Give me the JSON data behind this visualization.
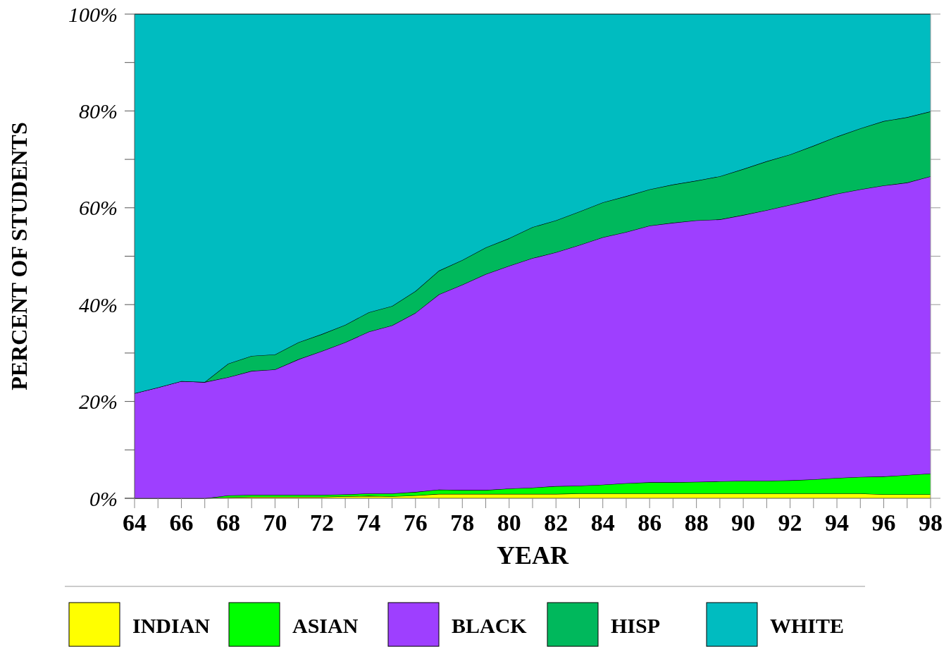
{
  "chart_data": {
    "type": "area",
    "stacked": true,
    "xlabel": "YEAR",
    "ylabel": "PERCENT OF STUDENTS",
    "x": [
      64,
      65,
      66,
      67,
      68,
      69,
      70,
      71,
      72,
      73,
      74,
      75,
      76,
      77,
      78,
      79,
      80,
      81,
      82,
      83,
      84,
      85,
      86,
      87,
      88,
      89,
      90,
      91,
      92,
      93,
      94,
      95,
      96,
      97,
      98
    ],
    "series": [
      {
        "name": "INDIAN",
        "color": "#ffff00",
        "values": [
          0,
          0,
          0,
          0,
          0.2,
          0.3,
          0.3,
          0.3,
          0.3,
          0.4,
          0.5,
          0.4,
          0.6,
          0.9,
          0.9,
          0.9,
          0.9,
          0.9,
          0.9,
          1.0,
          1.0,
          1.0,
          1.0,
          1.0,
          1.0,
          1.0,
          1.0,
          1.0,
          1.0,
          1.0,
          1.0,
          1.0,
          0.8,
          0.8,
          0.8
        ]
      },
      {
        "name": "ASIAN",
        "color": "#00ff00",
        "values": [
          0,
          0,
          0,
          0,
          0.4,
          0.4,
          0.4,
          0.4,
          0.4,
          0.4,
          0.5,
          0.6,
          0.7,
          0.9,
          0.8,
          0.8,
          1.1,
          1.3,
          1.6,
          1.6,
          1.8,
          2.1,
          2.3,
          2.3,
          2.4,
          2.5,
          2.6,
          2.6,
          2.7,
          2.9,
          3.2,
          3.4,
          3.7,
          4.0,
          4.3
        ]
      },
      {
        "name": "BLACK",
        "color": "#9e3fff",
        "values": [
          21.7,
          22.9,
          24.2,
          24.0,
          24.4,
          25.6,
          25.9,
          28.0,
          29.7,
          31.4,
          33.4,
          34.7,
          37.0,
          40.3,
          42.4,
          44.6,
          46.0,
          47.4,
          48.3,
          49.7,
          51.1,
          51.9,
          53.0,
          53.6,
          54.0,
          54.1,
          54.9,
          55.9,
          56.9,
          57.8,
          58.7,
          59.4,
          60.1,
          60.4,
          61.4
        ]
      },
      {
        "name": "HISP",
        "color": "#00b85c",
        "values": [
          0,
          0,
          0,
          0,
          2.8,
          3.1,
          3.1,
          3.5,
          3.5,
          3.6,
          4.0,
          4.0,
          4.5,
          4.9,
          5.1,
          5.5,
          5.7,
          6.4,
          6.6,
          6.9,
          7.2,
          7.4,
          7.5,
          7.9,
          8.2,
          8.9,
          9.5,
          10.1,
          10.4,
          11.1,
          11.8,
          12.6,
          13.3,
          13.5,
          13.4
        ]
      },
      {
        "name": "WHITE",
        "color": "#00bcc0",
        "values": [
          78.3,
          77.1,
          75.8,
          76.0,
          72.2,
          70.6,
          70.3,
          67.8,
          66.1,
          64.2,
          61.6,
          60.3,
          57.2,
          53.0,
          50.8,
          48.2,
          46.3,
          44.0,
          42.6,
          40.8,
          38.9,
          37.6,
          36.2,
          35.2,
          34.4,
          33.5,
          32.0,
          30.4,
          29.0,
          27.2,
          25.3,
          23.6,
          22.1,
          21.3,
          20.1
        ]
      }
    ],
    "xlim": [
      64,
      98
    ],
    "xticks": [
      64,
      {
        "value": 65,
        "label": null
      },
      66,
      {
        "value": 67,
        "label": null
      },
      68,
      {
        "value": 69,
        "label": null
      },
      70,
      {
        "value": 71,
        "label": null
      },
      72,
      {
        "value": 73,
        "label": null
      },
      74,
      {
        "value": 75,
        "label": null
      },
      76,
      {
        "value": 77,
        "label": null
      },
      78,
      {
        "value": 79,
        "label": null
      },
      80,
      {
        "value": 81,
        "label": null
      },
      82,
      {
        "value": 83,
        "label": null
      },
      84,
      {
        "value": 85,
        "label": null
      },
      86,
      {
        "value": 87,
        "label": null
      },
      88,
      {
        "value": 89,
        "label": null
      },
      90,
      {
        "value": 91,
        "label": null
      },
      92,
      {
        "value": 93,
        "label": null
      },
      94,
      {
        "value": 95,
        "label": null
      },
      96,
      {
        "value": 97,
        "label": null
      },
      98
    ],
    "ylim": [
      0,
      100
    ],
    "yticks": [
      {
        "value": 0,
        "label": "0%"
      },
      {
        "value": 10,
        "label": null
      },
      {
        "value": 20,
        "label": "20%"
      },
      {
        "value": 30,
        "label": null
      },
      {
        "value": 40,
        "label": "40%"
      },
      {
        "value": 50,
        "label": null
      },
      {
        "value": 60,
        "label": "60%"
      },
      {
        "value": 70,
        "label": null
      },
      {
        "value": 80,
        "label": "80%"
      },
      {
        "value": 90,
        "label": null
      },
      {
        "value": 100,
        "label": "100%"
      }
    ],
    "grid": false,
    "legend": "bottom"
  }
}
